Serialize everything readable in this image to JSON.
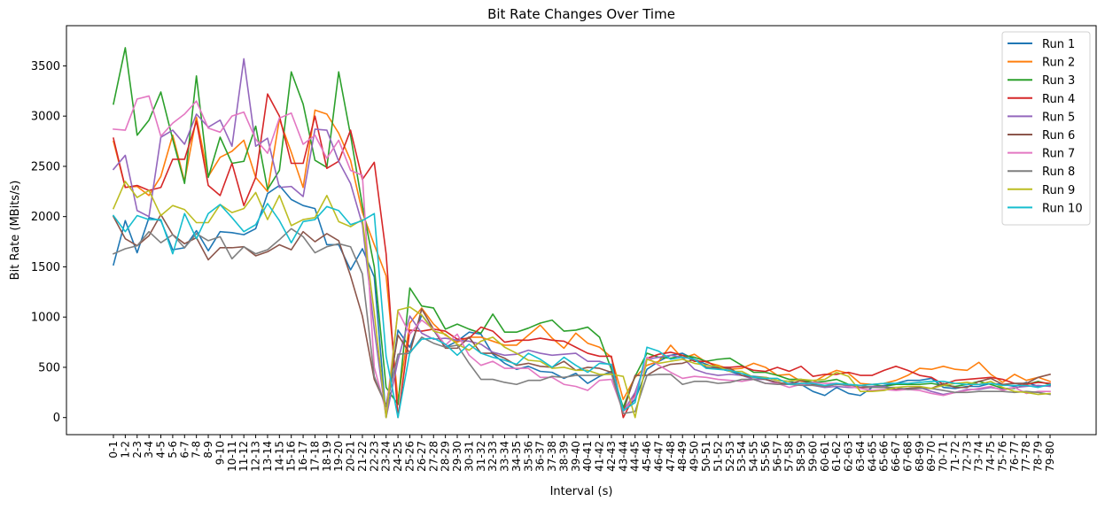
{
  "chart_data": {
    "type": "line",
    "title": "Bit Rate Changes Over Time",
    "xlabel": "Interval (s)",
    "ylabel": "Bit Rate (MBits/s)",
    "ylim": [
      -170,
      3900
    ],
    "yticks": [
      0,
      500,
      1000,
      1500,
      2000,
      2500,
      3000,
      3500
    ],
    "grid": false,
    "legend_position": "top-right",
    "categories": [
      "0-1",
      "1-2",
      "2-3",
      "3-4",
      "4-5",
      "5-6",
      "6-7",
      "7-8",
      "8-9",
      "9-10",
      "10-11",
      "11-12",
      "12-13",
      "13-14",
      "14-15",
      "15-16",
      "16-17",
      "17-18",
      "18-19",
      "19-20",
      "20-21",
      "21-22",
      "22-23",
      "23-24",
      "24-25",
      "25-26",
      "26-27",
      "27-28",
      "28-29",
      "29-30",
      "30-31",
      "31-32",
      "32-33",
      "33-34",
      "34-35",
      "35-36",
      "36-37",
      "37-38",
      "38-39",
      "39-40",
      "40-41",
      "41-42",
      "42-43",
      "43-44",
      "44-45",
      "45-46",
      "46-47",
      "47-48",
      "48-49",
      "49-50",
      "50-51",
      "51-52",
      "52-53",
      "53-54",
      "54-55",
      "55-56",
      "56-57",
      "57-58",
      "58-59",
      "59-60",
      "60-61",
      "61-62",
      "62-63",
      "63-64",
      "64-65",
      "65-66",
      "66-67",
      "67-68",
      "68-69",
      "69-70",
      "70-71",
      "71-72",
      "72-73",
      "73-74",
      "74-75",
      "75-76",
      "76-77",
      "77-78",
      "78-79",
      "79-80"
    ],
    "series": [
      {
        "name": "Run 1",
        "color": "#1f77b4",
        "values": [
          1520,
          1960,
          1640,
          1990,
          1960,
          1670,
          1690,
          1860,
          1660,
          1850,
          1840,
          1820,
          1880,
          2230,
          2310,
          2170,
          2110,
          2080,
          1720,
          1720,
          1470,
          1680,
          1400,
          0,
          870,
          700,
          1020,
          870,
          700,
          760,
          850,
          830,
          630,
          540,
          480,
          510,
          460,
          450,
          390,
          440,
          340,
          410,
          460,
          60,
          180,
          480,
          560,
          620,
          640,
          580,
          530,
          490,
          460,
          420,
          410,
          400,
          370,
          360,
          330,
          260,
          220,
          300,
          240,
          220,
          300,
          320,
          340,
          370,
          370,
          390,
          300,
          290,
          310,
          310,
          340,
          330,
          310,
          350,
          310,
          320
        ]
      },
      {
        "name": "Run 2",
        "color": "#ff7f0e",
        "values": [
          2750,
          2290,
          2300,
          2210,
          2400,
          2810,
          2350,
          2990,
          2400,
          2590,
          2650,
          2760,
          2390,
          2250,
          2970,
          2640,
          2290,
          3060,
          3020,
          2830,
          2560,
          2040,
          1720,
          1410,
          170,
          940,
          1090,
          930,
          820,
          750,
          800,
          800,
          760,
          720,
          720,
          820,
          920,
          790,
          690,
          840,
          740,
          700,
          600,
          180,
          400,
          520,
          560,
          720,
          590,
          630,
          550,
          520,
          480,
          490,
          540,
          500,
          420,
          430,
          360,
          350,
          420,
          470,
          440,
          340,
          330,
          340,
          370,
          420,
          490,
          480,
          510,
          480,
          470,
          550,
          430,
          350,
          430,
          370,
          400,
          360
        ]
      },
      {
        "name": "Run 3",
        "color": "#2ca02c",
        "values": [
          3120,
          3680,
          2810,
          2960,
          3240,
          2770,
          2330,
          3400,
          2390,
          2790,
          2530,
          2550,
          2900,
          2270,
          2460,
          3440,
          3120,
          2560,
          2490,
          3440,
          2810,
          2110,
          1500,
          300,
          130,
          1290,
          1110,
          1090,
          880,
          930,
          880,
          840,
          1030,
          850,
          850,
          890,
          940,
          970,
          860,
          870,
          900,
          800,
          480,
          100,
          410,
          640,
          600,
          590,
          620,
          600,
          560,
          580,
          590,
          520,
          450,
          450,
          420,
          380,
          380,
          350,
          360,
          380,
          330,
          320,
          330,
          310,
          330,
          330,
          330,
          340,
          320,
          310,
          330,
          360,
          330,
          290,
          290,
          330,
          360,
          330
        ]
      },
      {
        "name": "Run 4",
        "color": "#d62728",
        "values": [
          2780,
          2290,
          2310,
          2260,
          2290,
          2570,
          2570,
          2950,
          2310,
          2210,
          2530,
          2110,
          2390,
          3220,
          3000,
          2530,
          2530,
          3000,
          2480,
          2550,
          2860,
          2370,
          2540,
          1630,
          0,
          870,
          860,
          880,
          860,
          780,
          790,
          900,
          860,
          750,
          770,
          770,
          790,
          770,
          760,
          700,
          640,
          610,
          610,
          0,
          230,
          590,
          630,
          650,
          620,
          560,
          560,
          500,
          500,
          510,
          470,
          460,
          500,
          460,
          510,
          410,
          430,
          430,
          450,
          420,
          420,
          470,
          510,
          470,
          420,
          400,
          330,
          370,
          380,
          390,
          400,
          380,
          340,
          330,
          350,
          340
        ]
      },
      {
        "name": "Run 5",
        "color": "#9467bd",
        "values": [
          2470,
          2610,
          2060,
          2000,
          2790,
          2860,
          2720,
          3020,
          2890,
          2960,
          2700,
          3570,
          2700,
          2780,
          2290,
          2300,
          2200,
          2870,
          2860,
          2550,
          2330,
          1920,
          880,
          0,
          570,
          1010,
          840,
          780,
          790,
          770,
          760,
          730,
          650,
          620,
          630,
          670,
          640,
          620,
          630,
          640,
          560,
          560,
          520,
          60,
          250,
          580,
          600,
          620,
          600,
          480,
          440,
          420,
          430,
          420,
          380,
          380,
          340,
          340,
          340,
          320,
          300,
          310,
          300,
          300,
          310,
          310,
          280,
          290,
          300,
          260,
          230,
          250,
          280,
          280,
          300,
          280,
          300,
          310,
          320,
          310
        ]
      },
      {
        "name": "Run 6",
        "color": "#8c564b",
        "values": [
          2000,
          1780,
          1710,
          1810,
          2020,
          1820,
          1730,
          1790,
          1570,
          1690,
          1690,
          1700,
          1610,
          1650,
          1720,
          1670,
          1850,
          1750,
          1830,
          1760,
          1410,
          1010,
          380,
          120,
          820,
          640,
          1080,
          880,
          690,
          690,
          800,
          640,
          640,
          590,
          520,
          540,
          510,
          500,
          560,
          470,
          500,
          490,
          450,
          60,
          420,
          420,
          490,
          530,
          540,
          580,
          500,
          490,
          490,
          420,
          400,
          380,
          350,
          330,
          370,
          330,
          310,
          330,
          330,
          300,
          300,
          300,
          280,
          290,
          300,
          290,
          340,
          300,
          300,
          360,
          390,
          330,
          340,
          340,
          400,
          430
        ]
      },
      {
        "name": "Run 7",
        "color": "#e377c2",
        "values": [
          2870,
          2860,
          3170,
          3200,
          2800,
          2930,
          3020,
          3150,
          2880,
          2840,
          3000,
          3040,
          2770,
          2630,
          2980,
          3030,
          2720,
          2810,
          2580,
          2760,
          2460,
          2410,
          500,
          60,
          1060,
          830,
          970,
          880,
          720,
          830,
          620,
          520,
          560,
          490,
          490,
          490,
          400,
          400,
          330,
          310,
          270,
          370,
          380,
          60,
          210,
          600,
          520,
          450,
          390,
          410,
          400,
          380,
          370,
          360,
          380,
          340,
          340,
          300,
          330,
          350,
          340,
          340,
          310,
          290,
          270,
          280,
          270,
          280,
          270,
          240,
          220,
          250,
          270,
          290,
          310,
          270,
          300,
          240,
          260,
          260
        ]
      },
      {
        "name": "Run 8",
        "color": "#7f7f7f",
        "values": [
          1630,
          1680,
          1710,
          1850,
          1740,
          1820,
          1690,
          1830,
          1760,
          1800,
          1580,
          1700,
          1630,
          1670,
          1770,
          1880,
          1800,
          1640,
          1700,
          1730,
          1700,
          1430,
          410,
          110,
          630,
          640,
          800,
          740,
          700,
          720,
          540,
          380,
          380,
          350,
          330,
          370,
          370,
          410,
          400,
          420,
          420,
          420,
          440,
          40,
          60,
          420,
          430,
          430,
          330,
          360,
          360,
          340,
          350,
          380,
          380,
          340,
          330,
          330,
          320,
          320,
          310,
          330,
          320,
          320,
          300,
          300,
          300,
          280,
          290,
          290,
          270,
          250,
          250,
          260,
          260,
          260,
          250,
          260,
          250,
          230
        ]
      },
      {
        "name": "Run 9",
        "color": "#bcbd22",
        "values": [
          2080,
          2350,
          2190,
          2260,
          2010,
          2110,
          2070,
          1940,
          1940,
          2120,
          2040,
          2080,
          2240,
          1970,
          2210,
          1910,
          1970,
          1990,
          2210,
          1950,
          1900,
          1970,
          1040,
          0,
          1070,
          1100,
          1020,
          860,
          830,
          730,
          670,
          760,
          800,
          700,
          640,
          570,
          560,
          490,
          500,
          470,
          470,
          430,
          430,
          410,
          0,
          580,
          540,
          560,
          580,
          540,
          520,
          510,
          460,
          460,
          400,
          400,
          370,
          360,
          380,
          370,
          380,
          450,
          410,
          260,
          260,
          270,
          300,
          310,
          310,
          290,
          320,
          340,
          350,
          330,
          360,
          300,
          260,
          250,
          230,
          240
        ]
      },
      {
        "name": "Run 10",
        "color": "#17becf",
        "values": [
          2010,
          1850,
          2010,
          1970,
          1970,
          1630,
          2030,
          1780,
          2030,
          2120,
          1990,
          1850,
          1920,
          2130,
          1960,
          1740,
          1950,
          1970,
          2100,
          2060,
          1920,
          1960,
          2030,
          610,
          0,
          650,
          780,
          790,
          730,
          620,
          730,
          640,
          600,
          570,
          530,
          640,
          580,
          500,
          600,
          520,
          450,
          540,
          530,
          70,
          150,
          700,
          660,
          580,
          600,
          580,
          490,
          480,
          470,
          440,
          400,
          390,
          390,
          330,
          340,
          340,
          320,
          340,
          330,
          320,
          330,
          340,
          340,
          340,
          350,
          360,
          360,
          340,
          330,
          330,
          340,
          320,
          320,
          320,
          300,
          330
        ]
      }
    ]
  }
}
